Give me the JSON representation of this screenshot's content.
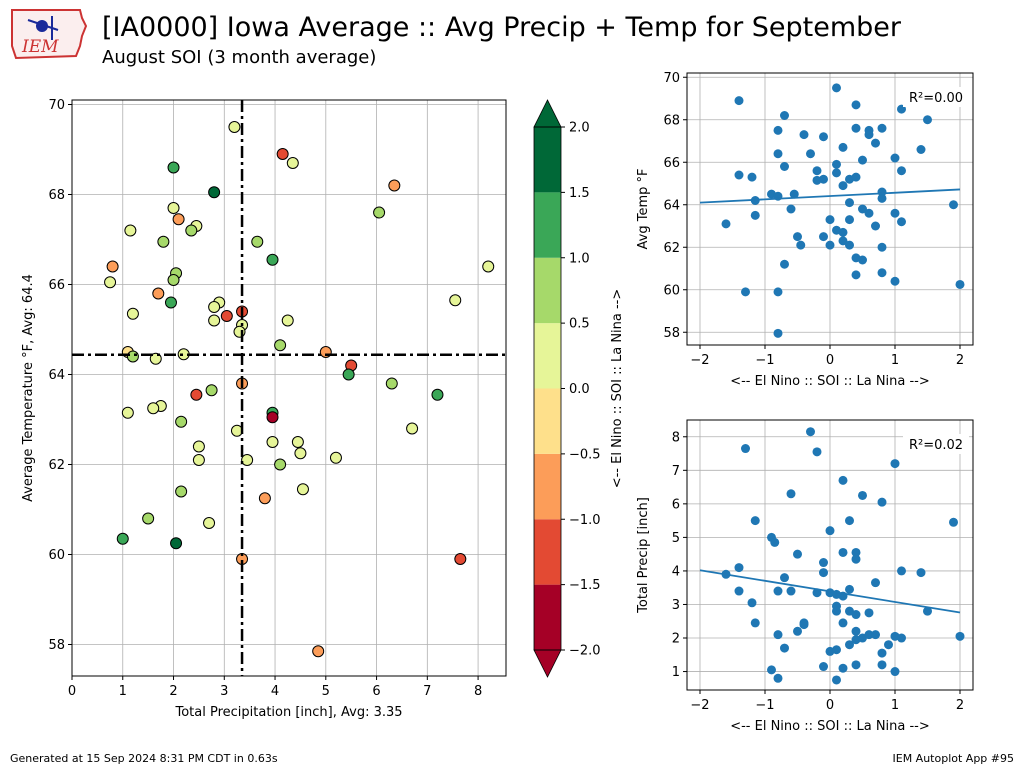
{
  "header": {
    "title": "[IA0000] Iowa Average :: Avg Precip + Temp for September",
    "subtitle": "August SOI (3 month average)",
    "logo_text": "IEM"
  },
  "footer": {
    "generated": "Generated at 15 Sep 2024 8:31 PM CDT in 0.63s",
    "app": "IEM Autoplot App #95"
  },
  "colors": {
    "scatter_dot": "#1f77b4",
    "fit_line": "#1f77b4",
    "grid": "#b0b0b0",
    "colorbar_bins": [
      "#a50026",
      "#e34a33",
      "#fc9d59",
      "#fee08b",
      "#e6f598",
      "#a6d96a",
      "#3aa757",
      "#006837"
    ]
  },
  "chart_data": [
    {
      "type": "scatter",
      "name": "main",
      "xlabel": "Total Precipitation [inch], Avg: 3.35",
      "ylabel": "Average Temperature °F, Avg: 64.4",
      "xlim": [
        0,
        8.55
      ],
      "ylim": [
        57.3,
        70.1
      ],
      "xticks": [
        0,
        1,
        2,
        3,
        4,
        5,
        6,
        7,
        8
      ],
      "yticks": [
        58,
        60,
        62,
        64,
        66,
        68,
        70
      ],
      "grid": true,
      "avg_x": 3.35,
      "avg_y": 64.44,
      "points": [
        {
          "x": 3.2,
          "y": 69.5,
          "soi": 0.25
        },
        {
          "x": 4.15,
          "y": 68.9,
          "soi": -1.3
        },
        {
          "x": 4.35,
          "y": 68.7,
          "soi": 0.3
        },
        {
          "x": 2.0,
          "y": 68.6,
          "soi": 1.2
        },
        {
          "x": 2.8,
          "y": 68.05,
          "soi": 1.8
        },
        {
          "x": 6.35,
          "y": 68.2,
          "soi": -0.7
        },
        {
          "x": 2.0,
          "y": 67.7,
          "soi": 0.4
        },
        {
          "x": 2.1,
          "y": 67.45,
          "soi": -0.8
        },
        {
          "x": 2.45,
          "y": 67.3,
          "soi": 0.3
        },
        {
          "x": 6.05,
          "y": 67.6,
          "soi": 0.8
        },
        {
          "x": 1.15,
          "y": 67.2,
          "soi": 0.3
        },
        {
          "x": 2.35,
          "y": 67.2,
          "soi": 0.6
        },
        {
          "x": 1.8,
          "y": 66.95,
          "soi": 0.6
        },
        {
          "x": 3.65,
          "y": 66.95,
          "soi": 0.6
        },
        {
          "x": 3.95,
          "y": 66.55,
          "soi": 1.2
        },
        {
          "x": 0.8,
          "y": 66.4,
          "soi": -0.8
        },
        {
          "x": 8.2,
          "y": 66.4,
          "soi": 0.3
        },
        {
          "x": 2.05,
          "y": 66.25,
          "soi": 0.8
        },
        {
          "x": 2.0,
          "y": 66.1,
          "soi": 0.6
        },
        {
          "x": 0.75,
          "y": 66.05,
          "soi": 0.3
        },
        {
          "x": 1.7,
          "y": 65.8,
          "soi": -0.7
        },
        {
          "x": 7.55,
          "y": 65.65,
          "soi": 0.3
        },
        {
          "x": 1.95,
          "y": 65.6,
          "soi": 1.0
        },
        {
          "x": 2.9,
          "y": 65.6,
          "soi": 0.4
        },
        {
          "x": 2.8,
          "y": 65.5,
          "soi": 0.3
        },
        {
          "x": 3.35,
          "y": 65.4,
          "soi": -1.3
        },
        {
          "x": 1.2,
          "y": 65.35,
          "soi": 0.3
        },
        {
          "x": 3.05,
          "y": 65.3,
          "soi": -1.4
        },
        {
          "x": 2.8,
          "y": 65.2,
          "soi": 0.3
        },
        {
          "x": 4.25,
          "y": 65.2,
          "soi": 0.3
        },
        {
          "x": 3.35,
          "y": 65.1,
          "soi": 0.3
        },
        {
          "x": 3.3,
          "y": 64.95,
          "soi": 0.3
        },
        {
          "x": 4.1,
          "y": 64.65,
          "soi": 0.6
        },
        {
          "x": 1.1,
          "y": 64.5,
          "soi": -0.3
        },
        {
          "x": 1.2,
          "y": 64.4,
          "soi": 0.6
        },
        {
          "x": 5.0,
          "y": 64.5,
          "soi": -0.6
        },
        {
          "x": 2.2,
          "y": 64.45,
          "soi": 0.3
        },
        {
          "x": 1.65,
          "y": 64.35,
          "soi": 0.3
        },
        {
          "x": 5.5,
          "y": 64.2,
          "soi": -1.4
        },
        {
          "x": 5.45,
          "y": 64.0,
          "soi": 1.3
        },
        {
          "x": 3.35,
          "y": 63.8,
          "soi": -0.7
        },
        {
          "x": 6.3,
          "y": 63.8,
          "soi": 0.7
        },
        {
          "x": 2.75,
          "y": 63.65,
          "soi": 0.8
        },
        {
          "x": 7.2,
          "y": 63.55,
          "soi": 1.2
        },
        {
          "x": 2.45,
          "y": 63.55,
          "soi": -1.3
        },
        {
          "x": 1.75,
          "y": 63.3,
          "soi": 0.3
        },
        {
          "x": 1.6,
          "y": 63.25,
          "soi": 0.3
        },
        {
          "x": 1.1,
          "y": 63.15,
          "soi": 0.3
        },
        {
          "x": 3.95,
          "y": 63.15,
          "soi": 1.0
        },
        {
          "x": 3.95,
          "y": 63.05,
          "soi": -1.8
        },
        {
          "x": 2.15,
          "y": 62.95,
          "soi": 0.7
        },
        {
          "x": 6.7,
          "y": 62.8,
          "soi": 0.3
        },
        {
          "x": 3.25,
          "y": 62.75,
          "soi": 0.3
        },
        {
          "x": 3.95,
          "y": 62.5,
          "soi": 0.3
        },
        {
          "x": 4.45,
          "y": 62.5,
          "soi": 0.3
        },
        {
          "x": 2.5,
          "y": 62.4,
          "soi": 0.3
        },
        {
          "x": 4.5,
          "y": 62.25,
          "soi": 0.3
        },
        {
          "x": 5.2,
          "y": 62.15,
          "soi": 0.3
        },
        {
          "x": 2.5,
          "y": 62.1,
          "soi": 0.3
        },
        {
          "x": 3.45,
          "y": 62.1,
          "soi": 0.3
        },
        {
          "x": 4.1,
          "y": 62.0,
          "soi": 0.6
        },
        {
          "x": 4.55,
          "y": 61.45,
          "soi": 0.3
        },
        {
          "x": 2.15,
          "y": 61.4,
          "soi": 0.6
        },
        {
          "x": 3.8,
          "y": 61.25,
          "soi": -0.8
        },
        {
          "x": 1.5,
          "y": 60.8,
          "soi": 0.6
        },
        {
          "x": 2.7,
          "y": 60.7,
          "soi": 0.3
        },
        {
          "x": 1.0,
          "y": 60.35,
          "soi": 1.2
        },
        {
          "x": 2.05,
          "y": 60.25,
          "soi": 1.6
        },
        {
          "x": 3.35,
          "y": 59.9,
          "soi": -0.8
        },
        {
          "x": 7.65,
          "y": 59.9,
          "soi": -1.3
        },
        {
          "x": 4.85,
          "y": 57.85,
          "soi": -0.8
        }
      ]
    },
    {
      "type": "colorbar",
      "label": "<-- El Nino :: SOI :: La Nina -->",
      "range": [
        -2.0,
        2.0
      ],
      "tick_labels": [
        "2.0",
        "1.5",
        "1.0",
        "0.5",
        "0.0",
        "−0.5",
        "−1.0",
        "−1.5",
        "−2.0"
      ]
    },
    {
      "type": "scatter",
      "name": "soi-temp",
      "xlabel": "<-- El Nino :: SOI :: La Nina -->",
      "ylabel": "Avg Temp °F",
      "xlim": [
        -2.2,
        2.2
      ],
      "ylim": [
        57.4,
        70.2
      ],
      "xticks": [
        -2,
        -1,
        0,
        1,
        2
      ],
      "yticks": [
        58,
        60,
        62,
        64,
        66,
        68,
        70
      ],
      "grid": true,
      "annotation": "R²=0.00",
      "fit": {
        "x": [
          -2,
          2
        ],
        "y": [
          64.1,
          64.72
        ]
      },
      "points": [
        [
          -1.4,
          68.9
        ],
        [
          -1.6,
          63.1
        ],
        [
          -1.4,
          65.4
        ],
        [
          -1.3,
          59.9
        ],
        [
          -1.2,
          65.3
        ],
        [
          -1.15,
          64.2
        ],
        [
          -1.15,
          63.5
        ],
        [
          -0.9,
          64.5
        ],
        [
          -0.8,
          67.5
        ],
        [
          -0.8,
          66.4
        ],
        [
          -0.8,
          64.4
        ],
        [
          -0.8,
          59.9
        ],
        [
          -0.8,
          57.95
        ],
        [
          -0.7,
          68.2
        ],
        [
          -0.7,
          65.8
        ],
        [
          -0.7,
          61.2
        ],
        [
          -0.6,
          63.8
        ],
        [
          -0.55,
          64.5
        ],
        [
          -0.5,
          62.5
        ],
        [
          -0.45,
          62.1
        ],
        [
          -0.4,
          67.3
        ],
        [
          -0.3,
          66.4
        ],
        [
          -0.2,
          65.6
        ],
        [
          -0.2,
          65.15
        ],
        [
          -0.1,
          67.2
        ],
        [
          -0.1,
          62.5
        ],
        [
          -0.1,
          65.2
        ],
        [
          0.0,
          63.3
        ],
        [
          0.0,
          62.1
        ],
        [
          0.1,
          69.5
        ],
        [
          0.1,
          65.9
        ],
        [
          0.1,
          65.5
        ],
        [
          0.1,
          62.8
        ],
        [
          0.2,
          66.7
        ],
        [
          0.2,
          64.9
        ],
        [
          0.2,
          62.7
        ],
        [
          0.2,
          62.3
        ],
        [
          0.3,
          65.2
        ],
        [
          0.3,
          64.1
        ],
        [
          0.3,
          63.3
        ],
        [
          0.3,
          62.1
        ],
        [
          0.4,
          65.3
        ],
        [
          0.4,
          60.7
        ],
        [
          0.4,
          61.5
        ],
        [
          0.4,
          67.6
        ],
        [
          0.4,
          68.7
        ],
        [
          0.5,
          66.1
        ],
        [
          0.5,
          63.8
        ],
        [
          0.5,
          61.4
        ],
        [
          0.6,
          67.5
        ],
        [
          0.6,
          67.3
        ],
        [
          0.6,
          63.6
        ],
        [
          0.7,
          66.9
        ],
        [
          0.7,
          63.0
        ],
        [
          0.8,
          67.6
        ],
        [
          0.8,
          64.6
        ],
        [
          0.8,
          64.3
        ],
        [
          0.8,
          62.0
        ],
        [
          0.8,
          60.8
        ],
        [
          1.0,
          66.2
        ],
        [
          1.0,
          63.6
        ],
        [
          1.0,
          60.4
        ],
        [
          1.1,
          65.6
        ],
        [
          1.1,
          63.2
        ],
        [
          1.1,
          68.5
        ],
        [
          1.4,
          66.6
        ],
        [
          1.5,
          68.0
        ],
        [
          1.9,
          64.0
        ],
        [
          2.0,
          60.25
        ]
      ]
    },
    {
      "type": "scatter",
      "name": "soi-precip",
      "xlabel": "<-- El Nino :: SOI :: La Nina -->",
      "ylabel": "Total Precip [inch]",
      "xlim": [
        -2.2,
        2.2
      ],
      "ylim": [
        0.45,
        8.5
      ],
      "xticks": [
        -2,
        -1,
        0,
        1,
        2
      ],
      "yticks": [
        1,
        2,
        3,
        4,
        5,
        6,
        7,
        8
      ],
      "grid": true,
      "annotation": "R²=0.02",
      "fit": {
        "x": [
          -2,
          2
        ],
        "y": [
          4.02,
          2.76
        ]
      },
      "points": [
        [
          -1.3,
          7.65
        ],
        [
          -1.6,
          3.9
        ],
        [
          -1.4,
          4.1
        ],
        [
          -1.4,
          3.4
        ],
        [
          -1.2,
          3.05
        ],
        [
          -1.15,
          2.45
        ],
        [
          -1.15,
          5.5
        ],
        [
          -0.9,
          5.0
        ],
        [
          -0.85,
          4.85
        ],
        [
          -0.8,
          3.4
        ],
        [
          -0.8,
          2.1
        ],
        [
          -0.8,
          0.8
        ],
        [
          -0.9,
          1.05
        ],
        [
          -0.7,
          3.8
        ],
        [
          -0.7,
          1.7
        ],
        [
          -0.6,
          6.3
        ],
        [
          -0.6,
          3.4
        ],
        [
          -0.5,
          4.5
        ],
        [
          -0.5,
          2.2
        ],
        [
          -0.4,
          2.45
        ],
        [
          -0.4,
          2.4
        ],
        [
          -0.3,
          8.15
        ],
        [
          -0.2,
          7.55
        ],
        [
          -0.2,
          3.35
        ],
        [
          -0.1,
          4.25
        ],
        [
          -0.1,
          3.95
        ],
        [
          -0.1,
          1.15
        ],
        [
          0.0,
          5.2
        ],
        [
          0.0,
          3.35
        ],
        [
          0.0,
          1.6
        ],
        [
          0.1,
          3.3
        ],
        [
          0.1,
          2.95
        ],
        [
          0.1,
          2.8
        ],
        [
          0.1,
          1.65
        ],
        [
          0.1,
          0.75
        ],
        [
          0.2,
          6.7
        ],
        [
          0.2,
          4.55
        ],
        [
          0.2,
          3.25
        ],
        [
          0.2,
          2.45
        ],
        [
          0.2,
          1.1
        ],
        [
          0.3,
          5.5
        ],
        [
          0.3,
          3.45
        ],
        [
          0.3,
          2.8
        ],
        [
          0.3,
          1.8
        ],
        [
          0.4,
          4.55
        ],
        [
          0.4,
          4.35
        ],
        [
          0.4,
          2.7
        ],
        [
          0.4,
          2.2
        ],
        [
          0.4,
          1.95
        ],
        [
          0.4,
          1.2
        ],
        [
          0.5,
          6.25
        ],
        [
          0.5,
          2.0
        ],
        [
          0.6,
          2.75
        ],
        [
          0.6,
          2.1
        ],
        [
          0.7,
          3.65
        ],
        [
          0.7,
          2.1
        ],
        [
          0.8,
          6.05
        ],
        [
          0.8,
          1.55
        ],
        [
          0.8,
          1.2
        ],
        [
          0.9,
          1.8
        ],
        [
          1.0,
          7.2
        ],
        [
          1.0,
          2.05
        ],
        [
          1.0,
          1.0
        ],
        [
          1.1,
          4.0
        ],
        [
          1.1,
          2.0
        ],
        [
          1.4,
          3.95
        ],
        [
          1.5,
          2.8
        ],
        [
          1.9,
          5.45
        ],
        [
          2.0,
          2.05
        ]
      ]
    }
  ]
}
